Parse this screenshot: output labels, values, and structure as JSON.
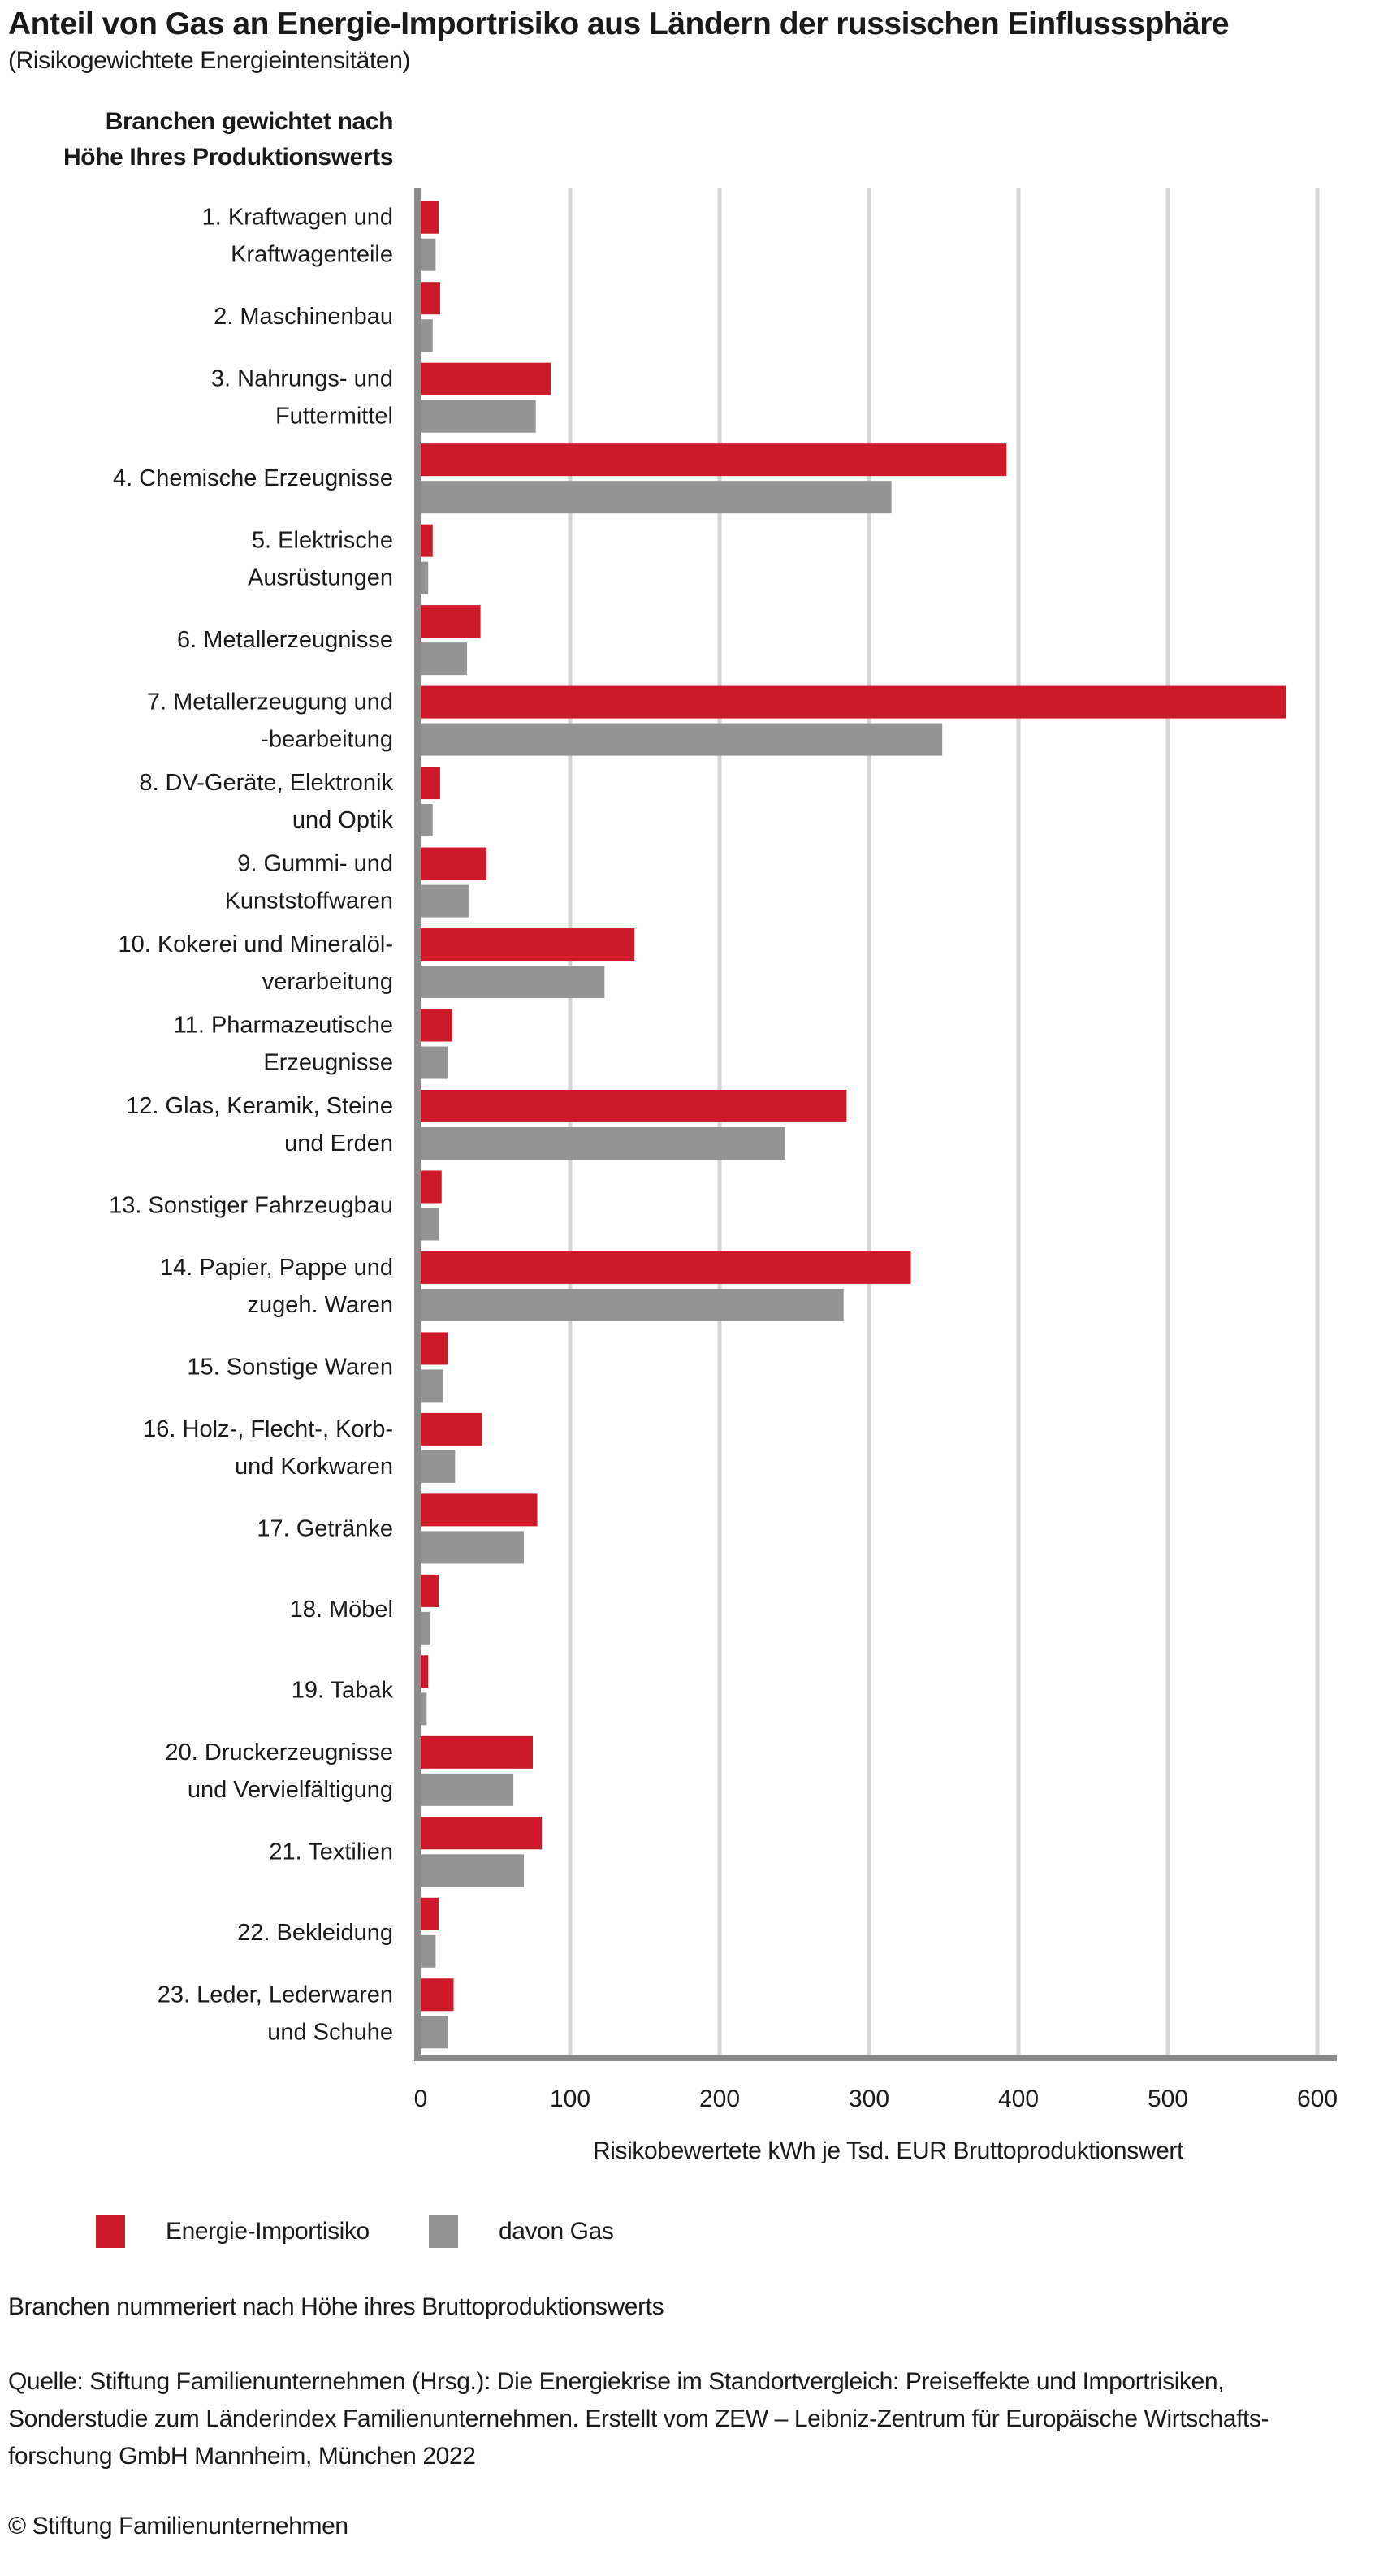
{
  "header": {
    "title": "Anteil von Gas an Energie-Importrisiko aus Ländern der russischen Einflusssphäre",
    "subtitle": "(Risikogewichtete Energieintensitäten)"
  },
  "chart_data": {
    "type": "bar",
    "orientation": "horizontal",
    "title": "Anteil von Gas an Energie-Importrisiko aus Ländern der russischen Einflusssphäre",
    "subtitle": "(Risikogewichtete Energieintensitäten)",
    "ylabel": "Branchen gewichtet nach Höhe Ihres Produktionswerts",
    "ylabel_lines": [
      "Branchen gewichtet nach",
      "Höhe Ihres Produktionswerts"
    ],
    "xlabel": "Risikobewertete kWh je Tsd. EUR Bruttoproduktionswert",
    "xlim": [
      0,
      600
    ],
    "xticks": [
      0,
      100,
      200,
      300,
      400,
      500,
      600
    ],
    "grid": true,
    "legend_position": "bottom-left",
    "categories": [
      [
        "1. Kraftwagen und",
        "Kraftwagenteile"
      ],
      [
        "2. Maschinenbau"
      ],
      [
        "3. Nahrungs- und",
        "Futtermittel"
      ],
      [
        "4. Chemische Erzeugnisse"
      ],
      [
        "5. Elektrische",
        "Ausrüstungen"
      ],
      [
        "6. Metallerzeugnisse"
      ],
      [
        "7. Metallerzeugung und",
        "-bearbeitung"
      ],
      [
        "8. DV-Geräte, Elektronik",
        "und Optik"
      ],
      [
        "9. Gummi- und",
        "Kunststoffwaren"
      ],
      [
        "10. Kokerei und Mineralöl-",
        "verarbeitung"
      ],
      [
        "11. Pharmazeutische",
        "Erzeugnisse"
      ],
      [
        "12. Glas, Keramik, Steine",
        "und Erden"
      ],
      [
        "13. Sonstiger Fahrzeugbau"
      ],
      [
        "14. Papier, Pappe und",
        "zugeh. Waren"
      ],
      [
        "15. Sonstige Waren"
      ],
      [
        "16. Holz-, Flecht-, Korb-",
        "und Korkwaren"
      ],
      [
        "17. Getränke"
      ],
      [
        "18. Möbel"
      ],
      [
        "19. Tabak"
      ],
      [
        "20. Druckerzeugnisse",
        "und Vervielfältigung"
      ],
      [
        "21. Textilien"
      ],
      [
        "22. Bekleidung"
      ],
      [
        "23. Leder, Lederwaren",
        "und Schuhe"
      ]
    ],
    "series": [
      {
        "name": "Energie-Importisiko",
        "color": "#cc1a2a",
        "values": [
          12,
          13,
          87,
          392,
          8,
          40,
          579,
          13,
          44,
          143,
          21,
          285,
          14,
          328,
          18,
          41,
          78,
          12,
          5,
          75,
          81,
          12,
          22
        ]
      },
      {
        "name": "davon Gas",
        "color": "#949494",
        "values": [
          10,
          8,
          77,
          315,
          5,
          31,
          349,
          8,
          32,
          123,
          18,
          244,
          12,
          283,
          15,
          23,
          69,
          6,
          4,
          62,
          69,
          10,
          18
        ]
      }
    ]
  },
  "footer": {
    "note": "Branchen nummeriert nach Höhe ihres Bruttoproduktionswerts",
    "source_lines": [
      "Quelle: Stiftung Familienunternehmen (Hrsg.): Die Energiekrise im Standortvergleich: Preiseffekte und Importrisiken,",
      "Sonderstudie zum Länderindex Familienunternehmen. Erstellt vom ZEW – Leibniz-Zentrum für Europäische Wirtschafts-",
      "forschung GmbH Mannheim, München 2022"
    ],
    "copyright": "© Stiftung Familienunternehmen"
  }
}
